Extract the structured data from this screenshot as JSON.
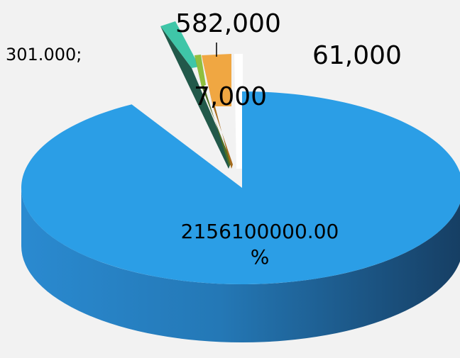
{
  "chart_data": {
    "type": "pie",
    "style": "3d-exploded",
    "title": "",
    "slices": [
      {
        "label": "2156100000.00 %",
        "value": 2156100000,
        "color": "#2b9ee6",
        "side_color": "#1f6fa8"
      },
      {
        "label": "301.000;",
        "value": 301000,
        "color": "#3fc6a8",
        "side_color": "#22594a"
      },
      {
        "label": "7,000",
        "value": 7000,
        "color": "#8fbf3f",
        "side_color": "#4f6f22"
      },
      {
        "label": "582,000",
        "value": 582000,
        "color": "#f0a742",
        "side_color": "#a56a1c"
      },
      {
        "label": "61,000",
        "value": 61000,
        "color": "#ffffff",
        "side_color": "#dcdcdc"
      }
    ],
    "label_lines": [
      {
        "line1": "2156100000.00",
        "line2": "%"
      },
      {
        "line1": "301.000;"
      },
      {
        "line1": "7,000"
      },
      {
        "line1": "582,000"
      },
      {
        "line1": "61,000"
      }
    ]
  }
}
